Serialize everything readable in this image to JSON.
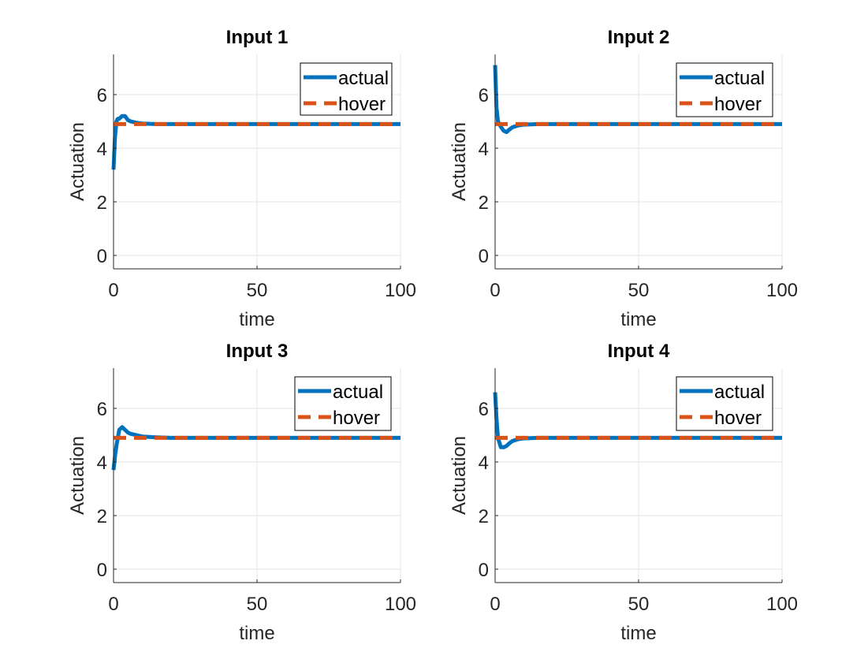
{
  "figure": {
    "background": "#ffffff"
  },
  "colors": {
    "actual": "#0072BD",
    "hover": "#D95319",
    "grid": "#e6e6e6",
    "axis": "#262626"
  },
  "chart_data": [
    {
      "type": "line",
      "title": "Input 1",
      "xlabel": "time",
      "ylabel": "Actuation",
      "xlim": [
        0,
        100
      ],
      "ylim": [
        -0.5,
        7.5
      ],
      "xticks": [
        0,
        50,
        100
      ],
      "yticks": [
        0,
        2,
        4,
        6
      ],
      "xtick_labels": [
        "0",
        "50",
        "100"
      ],
      "ytick_labels": [
        "0",
        "2",
        "4",
        "6"
      ],
      "grid": true,
      "legend": {
        "location": "top-right",
        "entries": [
          "actual",
          "hover"
        ]
      },
      "series": [
        {
          "name": "actual",
          "style": "solid",
          "x": [
            0,
            0.5,
            1,
            1.5,
            2,
            3,
            4,
            5,
            6,
            8,
            10,
            15,
            20,
            100
          ],
          "y": [
            3.2,
            4.4,
            5.0,
            5.1,
            5.1,
            5.2,
            5.2,
            5.05,
            5.0,
            4.95,
            4.92,
            4.9,
            4.9,
            4.9
          ]
        },
        {
          "name": "hover",
          "style": "dashed",
          "x": [
            0,
            100
          ],
          "y": [
            4.9,
            4.9
          ]
        }
      ]
    },
    {
      "type": "line",
      "title": "Input 2",
      "xlabel": "time",
      "ylabel": "Actuation",
      "xlim": [
        0,
        100
      ],
      "ylim": [
        -0.5,
        7.5
      ],
      "xticks": [
        0,
        50,
        100
      ],
      "yticks": [
        0,
        2,
        4,
        6
      ],
      "xtick_labels": [
        "0",
        "50",
        "100"
      ],
      "ytick_labels": [
        "0",
        "2",
        "4",
        "6"
      ],
      "grid": true,
      "legend": {
        "location": "top-right",
        "entries": [
          "actual",
          "hover"
        ]
      },
      "series": [
        {
          "name": "actual",
          "style": "solid",
          "x": [
            0,
            0.5,
            1,
            2,
            3,
            4,
            5,
            6,
            8,
            10,
            15,
            20,
            100
          ],
          "y": [
            7.1,
            5.5,
            5.0,
            4.8,
            4.65,
            4.6,
            4.7,
            4.78,
            4.85,
            4.88,
            4.9,
            4.9,
            4.9
          ]
        },
        {
          "name": "hover",
          "style": "dashed",
          "x": [
            0,
            100
          ],
          "y": [
            4.9,
            4.9
          ]
        }
      ]
    },
    {
      "type": "line",
      "title": "Input 3",
      "xlabel": "time",
      "ylabel": "Actuation",
      "xlim": [
        0,
        100
      ],
      "ylim": [
        -0.5,
        7.5
      ],
      "xticks": [
        0,
        50,
        100
      ],
      "yticks": [
        0,
        2,
        4,
        6
      ],
      "xtick_labels": [
        "0",
        "50",
        "100"
      ],
      "ytick_labels": [
        "0",
        "2",
        "4",
        "6"
      ],
      "grid": true,
      "legend": {
        "location": "top-right",
        "entries": [
          "actual",
          "hover"
        ]
      },
      "series": [
        {
          "name": "actual",
          "style": "solid",
          "x": [
            0,
            0.5,
            1,
            2,
            3,
            4,
            5,
            6,
            8,
            10,
            15,
            20,
            100
          ],
          "y": [
            3.7,
            4.2,
            4.6,
            5.2,
            5.3,
            5.2,
            5.1,
            5.05,
            5.0,
            4.95,
            4.92,
            4.9,
            4.9
          ]
        },
        {
          "name": "hover",
          "style": "dashed",
          "x": [
            0,
            100
          ],
          "y": [
            4.9,
            4.9
          ]
        }
      ]
    },
    {
      "type": "line",
      "title": "Input 4",
      "xlabel": "time",
      "ylabel": "Actuation",
      "xlim": [
        0,
        100
      ],
      "ylim": [
        -0.5,
        7.5
      ],
      "xticks": [
        0,
        50,
        100
      ],
      "yticks": [
        0,
        2,
        4,
        6
      ],
      "xtick_labels": [
        "0",
        "50",
        "100"
      ],
      "ytick_labels": [
        "0",
        "2",
        "4",
        "6"
      ],
      "grid": true,
      "legend": {
        "location": "top-right",
        "entries": [
          "actual",
          "hover"
        ]
      },
      "series": [
        {
          "name": "actual",
          "style": "solid",
          "x": [
            0,
            0.5,
            1,
            2,
            3,
            4,
            5,
            6,
            8,
            10,
            15,
            20,
            100
          ],
          "y": [
            6.6,
            5.6,
            4.9,
            4.55,
            4.55,
            4.6,
            4.7,
            4.78,
            4.85,
            4.88,
            4.9,
            4.9,
            4.9
          ]
        },
        {
          "name": "hover",
          "style": "dashed",
          "x": [
            0,
            100
          ],
          "y": [
            4.9,
            4.9
          ]
        }
      ]
    }
  ]
}
